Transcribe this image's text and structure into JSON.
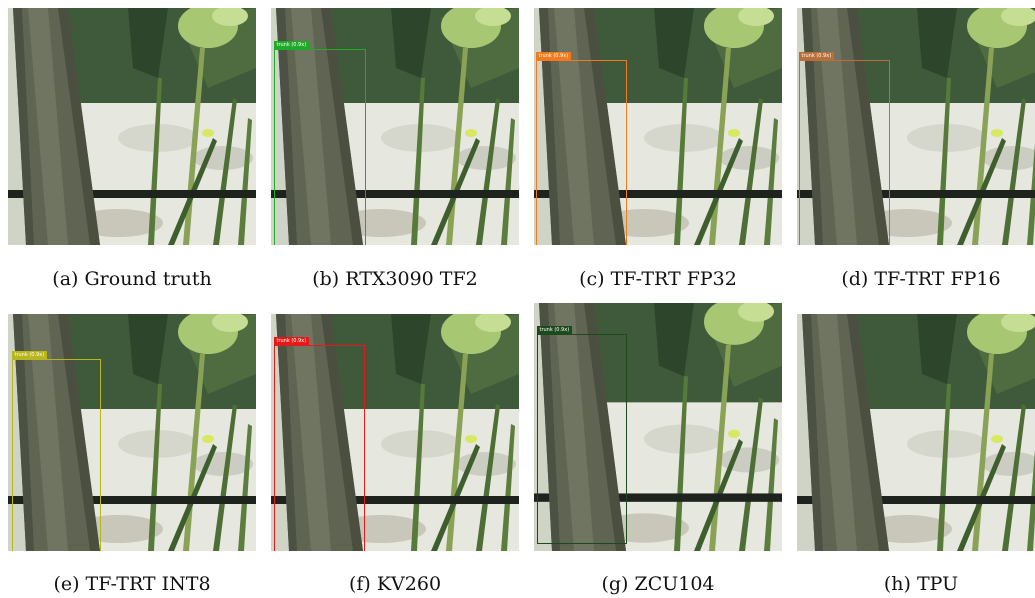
{
  "panels": [
    {
      "caption": "(a) Ground truth",
      "detection": null
    },
    {
      "caption": "(b) RTX3090 TF2",
      "detection": {
        "label": "trunk (0.9x)",
        "color": "#1faa2a"
      }
    },
    {
      "caption": "(c) TF-TRT FP32",
      "detection": {
        "label": "trunk (0.9x)",
        "color": "#f07a1c"
      }
    },
    {
      "caption": "(d) TF-TRT FP16",
      "detection": {
        "label": "trunk (0.9x)",
        "color": "#b86f3a"
      }
    },
    {
      "caption": "(e) TF-TRT INT8",
      "detection": {
        "label": "trunk (0.9x)",
        "color": "#b9b51c"
      }
    },
    {
      "caption": "(f) KV260",
      "detection": {
        "label": "trunk (0.9x)",
        "color": "#e41a1a"
      }
    },
    {
      "caption": "(g) ZCU104",
      "detection": {
        "label": "trunk (0.9x)",
        "color": "#1d4a1d"
      }
    },
    {
      "caption": "(h) TPU",
      "detection": null
    }
  ]
}
